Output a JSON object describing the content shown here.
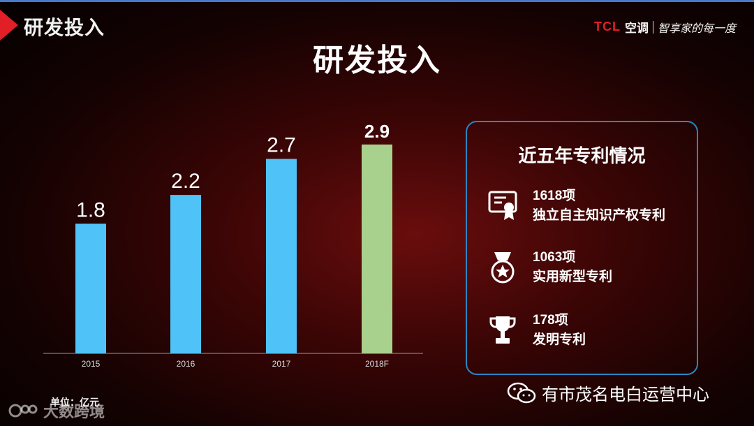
{
  "header": {
    "title": "研发投入"
  },
  "brand": {
    "tcl": "TCL",
    "ac": "空调",
    "slogan": "智享家的每一度"
  },
  "main_title": "研发投入",
  "chart_data": {
    "type": "bar",
    "categories": [
      "2015",
      "2016",
      "2017",
      "2018F"
    ],
    "values": [
      1.8,
      2.2,
      2.7,
      2.9
    ],
    "value_labels": [
      "1.8",
      "2.2",
      "2.7",
      "2.9"
    ],
    "ylim": [
      0,
      3.2
    ],
    "colors": [
      "#4fc3f7",
      "#4fc3f7",
      "#4fc3f7",
      "#a9d18e"
    ],
    "unit_label": "单位：亿元"
  },
  "patents": {
    "title": "近五年专利情况",
    "items": [
      {
        "count": "1618项",
        "label": "独立自主知识产权专利",
        "icon": "certificate-icon"
      },
      {
        "count": "1063项",
        "label": "实用新型专利",
        "icon": "star-medal-icon"
      },
      {
        "count": "178项",
        "label": "发明专利",
        "icon": "trophy-icon"
      }
    ]
  },
  "footer": {
    "wechat": "有市茂名电白运营中心",
    "watermark": "大数跨境"
  }
}
